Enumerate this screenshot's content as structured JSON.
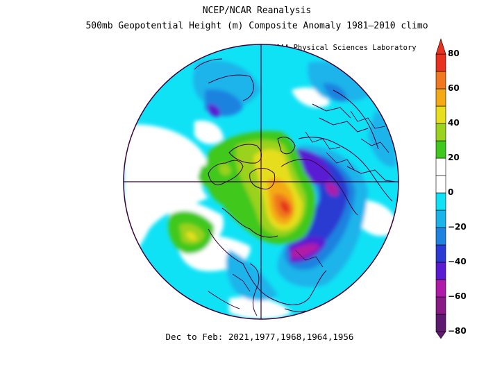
{
  "header": {
    "title": "NCEP/NCAR Reanalysis",
    "subtitle": "500mb Geopotential Height (m) Composite Anomaly 1981–2010 climo",
    "credit": "NOAA Physical Sciences Laboratory"
  },
  "caption": "Dec to Feb: 2021,1977,1968,1964,1956",
  "colorbar": {
    "labels": [
      "80",
      "60",
      "40",
      "20",
      "0",
      "−20",
      "−40",
      "−60",
      "−80"
    ],
    "colors": [
      "#5e1a6e",
      "#8a1a86",
      "#b01aa8",
      "#5a1ad2",
      "#2a3ad2",
      "#1e82e0",
      "#1ab4ea",
      "#10e2f6",
      "#ffffff",
      "#ffffff",
      "#40c81e",
      "#9ad21e",
      "#e6de1e",
      "#f4aa14",
      "#f0781e",
      "#e6321e"
    ]
  },
  "map": {
    "projection": "north-polar-stereographic",
    "field": "500mb geopotential height anomaly (m)"
  }
}
